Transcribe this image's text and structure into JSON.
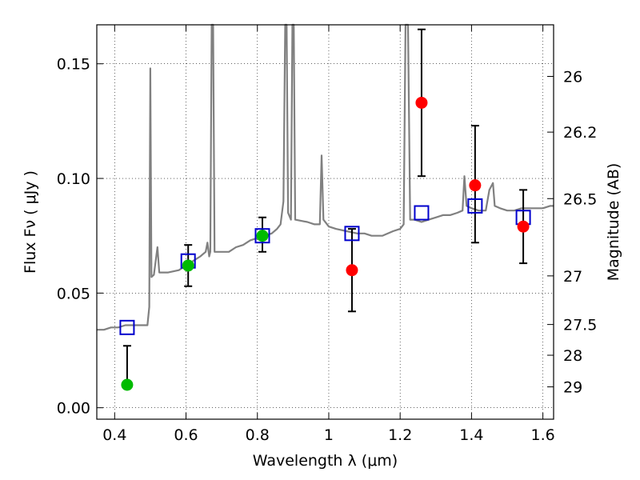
{
  "chart_data": {
    "type": "scatter",
    "xlabel": "Wavelength  λ (μm)",
    "ylabel": "Flux  Fν ( μJy )",
    "ylabel_right": "Magnitude (AB)",
    "xlim": [
      0.35,
      1.63
    ],
    "ylim": [
      -0.005,
      0.167
    ],
    "grid": true,
    "x_ticks": [
      0.4,
      0.6,
      0.8,
      1.0,
      1.2,
      1.4,
      1.6
    ],
    "x_tick_labels": [
      "0.4",
      "0.6",
      "0.8",
      "1",
      "1.2",
      "1.4",
      "1.6"
    ],
    "y_ticks": [
      0.0,
      0.05,
      0.1,
      0.15
    ],
    "y_tick_labels": [
      "0.00",
      "0.05",
      "0.10",
      "0.15"
    ],
    "right_ticks": [
      {
        "label": "26",
        "flux": 0.1445
      },
      {
        "label": "26.2",
        "flux": 0.1202
      },
      {
        "label": "26.5",
        "flux": 0.0912
      },
      {
        "label": "27",
        "flux": 0.0575
      },
      {
        "label": "27.5",
        "flux": 0.0363
      },
      {
        "label": "28",
        "flux": 0.0229
      },
      {
        "label": "29",
        "flux": 0.0091
      }
    ],
    "colors": {
      "model": "#808080",
      "green": "#00bb00",
      "red": "#ff0000",
      "blue": "#0000cc",
      "errorbar": "#000000"
    },
    "series": [
      {
        "marker": "open-square",
        "color": "#0000cc",
        "points": [
          {
            "x": 0.435,
            "y": 0.035
          },
          {
            "x": 0.606,
            "y": 0.064
          },
          {
            "x": 0.814,
            "y": 0.075
          },
          {
            "x": 1.065,
            "y": 0.076
          },
          {
            "x": 1.26,
            "y": 0.085
          },
          {
            "x": 1.41,
            "y": 0.088
          },
          {
            "x": 1.545,
            "y": 0.083
          }
        ]
      },
      {
        "marker": "filled-circle",
        "color": "#00bb00",
        "points": [
          {
            "x": 0.435,
            "y": 0.01,
            "yerr_low": 0.01,
            "yerr_high": 0.027
          },
          {
            "x": 0.606,
            "y": 0.062,
            "yerr_low": 0.053,
            "yerr_high": 0.071
          },
          {
            "x": 0.814,
            "y": 0.075,
            "yerr_low": 0.068,
            "yerr_high": 0.083
          }
        ]
      },
      {
        "marker": "filled-circle",
        "color": "#ff0000",
        "points": [
          {
            "x": 1.065,
            "y": 0.06,
            "yerr_low": 0.042,
            "yerr_high": 0.078
          },
          {
            "x": 1.26,
            "y": 0.133,
            "yerr_low": 0.101,
            "yerr_high": 0.165
          },
          {
            "x": 1.41,
            "y": 0.097,
            "yerr_low": 0.072,
            "yerr_high": 0.123
          },
          {
            "x": 1.545,
            "y": 0.079,
            "yerr_low": 0.063,
            "yerr_high": 0.095
          }
        ]
      }
    ],
    "model_spectrum": [
      [
        0.35,
        0.034
      ],
      [
        0.37,
        0.034
      ],
      [
        0.39,
        0.035
      ],
      [
        0.41,
        0.035
      ],
      [
        0.43,
        0.036
      ],
      [
        0.46,
        0.036
      ],
      [
        0.485,
        0.036
      ],
      [
        0.492,
        0.036
      ],
      [
        0.497,
        0.044
      ],
      [
        0.5,
        0.148
      ],
      [
        0.503,
        0.057
      ],
      [
        0.51,
        0.058
      ],
      [
        0.52,
        0.07
      ],
      [
        0.525,
        0.059
      ],
      [
        0.55,
        0.059
      ],
      [
        0.58,
        0.06
      ],
      [
        0.6,
        0.062
      ],
      [
        0.62,
        0.064
      ],
      [
        0.64,
        0.066
      ],
      [
        0.655,
        0.068
      ],
      [
        0.66,
        0.072
      ],
      [
        0.665,
        0.066
      ],
      [
        0.668,
        0.068
      ],
      [
        0.672,
        0.168
      ],
      [
        0.676,
        0.168
      ],
      [
        0.68,
        0.068
      ],
      [
        0.7,
        0.068
      ],
      [
        0.72,
        0.068
      ],
      [
        0.74,
        0.07
      ],
      [
        0.76,
        0.071
      ],
      [
        0.78,
        0.073
      ],
      [
        0.8,
        0.074
      ],
      [
        0.82,
        0.075
      ],
      [
        0.84,
        0.076
      ],
      [
        0.855,
        0.078
      ],
      [
        0.865,
        0.08
      ],
      [
        0.873,
        0.09
      ],
      [
        0.878,
        0.168
      ],
      [
        0.882,
        0.168
      ],
      [
        0.886,
        0.085
      ],
      [
        0.894,
        0.082
      ],
      [
        0.898,
        0.168
      ],
      [
        0.902,
        0.168
      ],
      [
        0.906,
        0.082
      ],
      [
        0.94,
        0.081
      ],
      [
        0.96,
        0.08
      ],
      [
        0.975,
        0.08
      ],
      [
        0.98,
        0.11
      ],
      [
        0.985,
        0.082
      ],
      [
        1.0,
        0.079
      ],
      [
        1.02,
        0.078
      ],
      [
        1.05,
        0.077
      ],
      [
        1.08,
        0.076
      ],
      [
        1.1,
        0.076
      ],
      [
        1.12,
        0.075
      ],
      [
        1.15,
        0.075
      ],
      [
        1.18,
        0.077
      ],
      [
        1.2,
        0.078
      ],
      [
        1.21,
        0.08
      ],
      [
        1.215,
        0.168
      ],
      [
        1.222,
        0.168
      ],
      [
        1.228,
        0.082
      ],
      [
        1.24,
        0.082
      ],
      [
        1.26,
        0.081
      ],
      [
        1.28,
        0.082
      ],
      [
        1.3,
        0.083
      ],
      [
        1.32,
        0.084
      ],
      [
        1.34,
        0.084
      ],
      [
        1.36,
        0.085
      ],
      [
        1.375,
        0.086
      ],
      [
        1.38,
        0.101
      ],
      [
        1.386,
        0.088
      ],
      [
        1.4,
        0.087
      ],
      [
        1.42,
        0.086
      ],
      [
        1.44,
        0.086
      ],
      [
        1.45,
        0.095
      ],
      [
        1.46,
        0.098
      ],
      [
        1.465,
        0.088
      ],
      [
        1.48,
        0.087
      ],
      [
        1.5,
        0.086
      ],
      [
        1.52,
        0.086
      ],
      [
        1.54,
        0.087
      ],
      [
        1.56,
        0.087
      ],
      [
        1.58,
        0.087
      ],
      [
        1.6,
        0.087
      ],
      [
        1.62,
        0.088
      ],
      [
        1.63,
        0.088
      ]
    ]
  }
}
